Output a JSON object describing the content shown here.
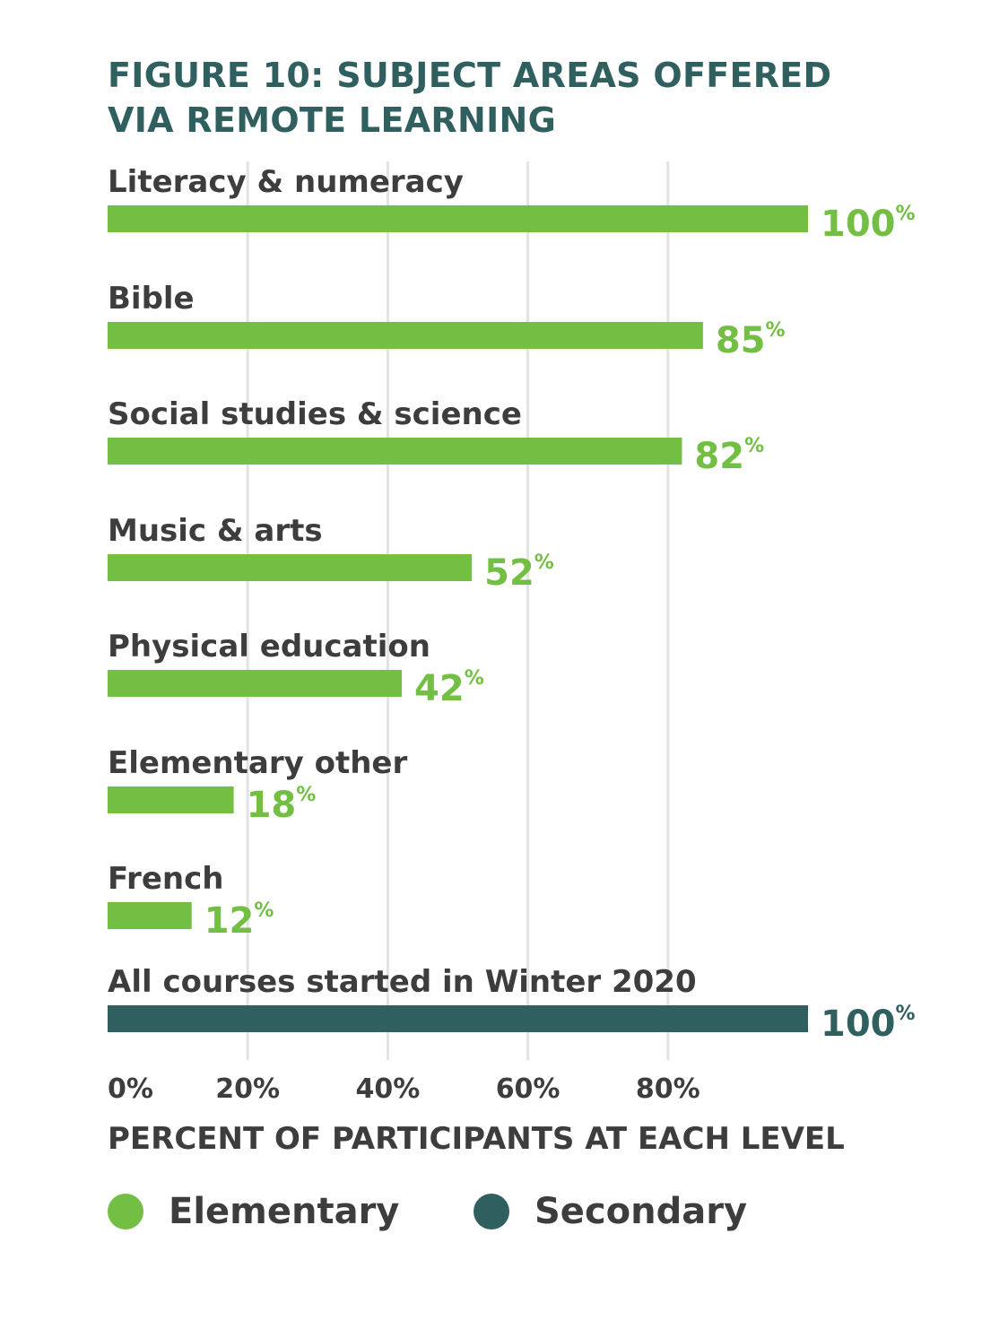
{
  "chart_data": {
    "type": "bar",
    "orientation": "horizontal",
    "title_lines": [
      "FIGURE 10: SUBJECT AREAS OFFERED",
      "VIA REMOTE LEARNING"
    ],
    "xlabel": "PERCENT OF PARTICIPANTS AT EACH LEVEL",
    "xlim": [
      0,
      100
    ],
    "grid": "vertical",
    "ticks": [
      {
        "value": 0,
        "label": "0%"
      },
      {
        "value": 20,
        "label": "20%"
      },
      {
        "value": 40,
        "label": "40%"
      },
      {
        "value": 60,
        "label": "60%"
      },
      {
        "value": 80,
        "label": "80%"
      }
    ],
    "categories": [
      {
        "label": "Literacy & numeracy",
        "value": 100,
        "value_label": "100",
        "series": "Elementary"
      },
      {
        "label": "Bible",
        "value": 85,
        "value_label": "85",
        "series": "Elementary"
      },
      {
        "label": "Social studies & science",
        "value": 82,
        "value_label": "82",
        "series": "Elementary"
      },
      {
        "label": "Music & arts",
        "value": 52,
        "value_label": "52",
        "series": "Elementary"
      },
      {
        "label": "Physical education",
        "value": 42,
        "value_label": "42",
        "series": "Elementary"
      },
      {
        "label": "Elementary other",
        "value": 18,
        "value_label": "18",
        "series": "Elementary"
      },
      {
        "label": "French",
        "value": 12,
        "value_label": "12",
        "series": "Elementary"
      },
      {
        "label": "All courses started in Winter 2020",
        "value": 100,
        "value_label": "100",
        "series": "Secondary"
      }
    ],
    "percent_sign": "%",
    "series": [
      {
        "name": "Elementary",
        "color": "#72bf44"
      },
      {
        "name": "Secondary",
        "color": "#2f5f5f"
      }
    ],
    "legend_position": "bottom-left"
  }
}
